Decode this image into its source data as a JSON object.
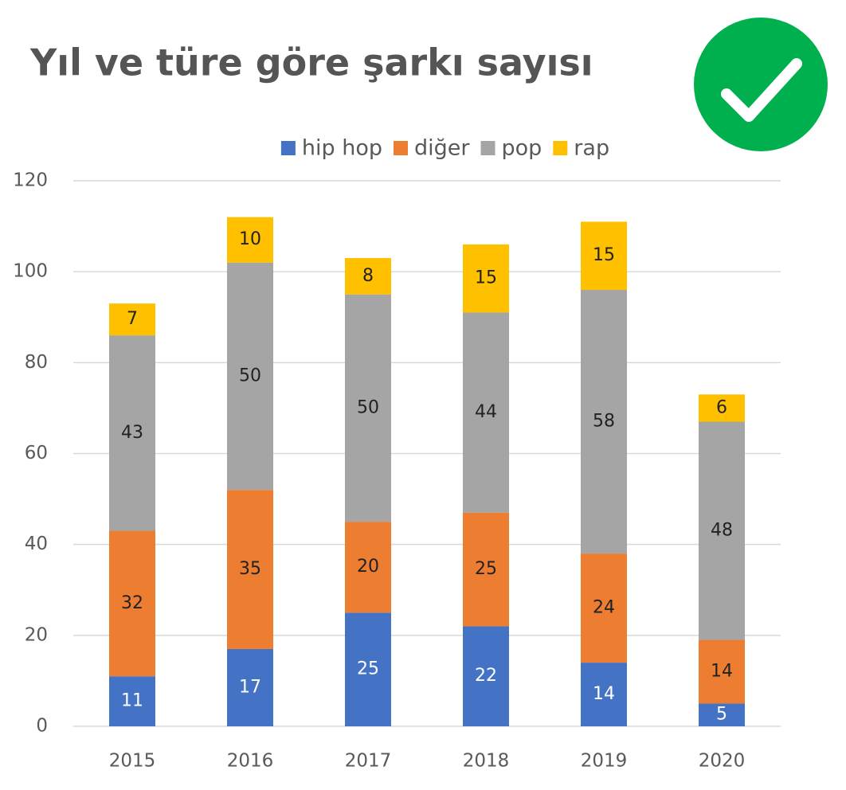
{
  "chart_data": {
    "type": "stacked_bar",
    "title": "Yıl ve türe göre şarkı sayısı",
    "categories": [
      "2015",
      "2016",
      "2017",
      "2018",
      "2019",
      "2020"
    ],
    "series": [
      {
        "name": "hip hop",
        "color": "#4472c4",
        "values": [
          11,
          17,
          25,
          22,
          14,
          5
        ]
      },
      {
        "name": "diğer",
        "color": "#ed7d31",
        "values": [
          32,
          35,
          20,
          25,
          24,
          14
        ]
      },
      {
        "name": "pop",
        "color": "#a5a5a5",
        "values": [
          43,
          50,
          50,
          44,
          58,
          48
        ]
      },
      {
        "name": "rap",
        "color": "#ffc000",
        "values": [
          7,
          10,
          8,
          15,
          15,
          6
        ]
      }
    ],
    "ylim": [
      0,
      120
    ],
    "yticks": [
      0,
      20,
      40,
      60,
      80,
      100,
      120
    ],
    "grid": true,
    "legend": "top"
  }
}
